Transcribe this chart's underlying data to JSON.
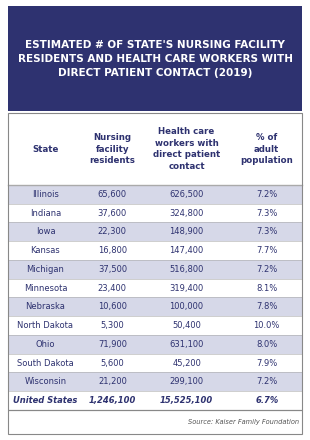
{
  "title": "ESTIMATED # OF STATE'S NURSING FACILITY\nRESIDENTS AND HEALTH CARE WORKERS WITH\nDIRECT PATIENT CONTACT (2019)",
  "title_bg": "#2e3270",
  "title_color": "#ffffff",
  "col_headers": [
    "State",
    "Nursing\nfacility\nresidents",
    "Health care\nworkers with\ndirect patient\ncontact",
    "% of\nadult\npopulation"
  ],
  "rows": [
    [
      "Illinois",
      "65,600",
      "626,500",
      "7.2%"
    ],
    [
      "Indiana",
      "37,600",
      "324,800",
      "7.3%"
    ],
    [
      "Iowa",
      "22,300",
      "148,900",
      "7.3%"
    ],
    [
      "Kansas",
      "16,800",
      "147,400",
      "7.7%"
    ],
    [
      "Michigan",
      "37,500",
      "516,800",
      "7.2%"
    ],
    [
      "Minnesota",
      "23,400",
      "319,400",
      "8.1%"
    ],
    [
      "Nebraska",
      "10,600",
      "100,000",
      "7.8%"
    ],
    [
      "North Dakota",
      "5,300",
      "50,400",
      "10.0%"
    ],
    [
      "Ohio",
      "71,900",
      "631,100",
      "8.0%"
    ],
    [
      "South Dakota",
      "5,600",
      "45,200",
      "7.9%"
    ],
    [
      "Wisconsin",
      "21,200",
      "299,100",
      "7.2%"
    ],
    [
      "United States",
      "1,246,100",
      "15,525,100",
      "6.7%"
    ]
  ],
  "source": "Source: Kaiser Family Foundation",
  "header_color": "#2e3270",
  "header_bg": "#ffffff",
  "stripe_color": "#d6d8e8",
  "row_text_color": "#2e3270",
  "border_color": "#aaaaaa",
  "bg_color": "#ffffff",
  "outer_border_color": "#888888"
}
